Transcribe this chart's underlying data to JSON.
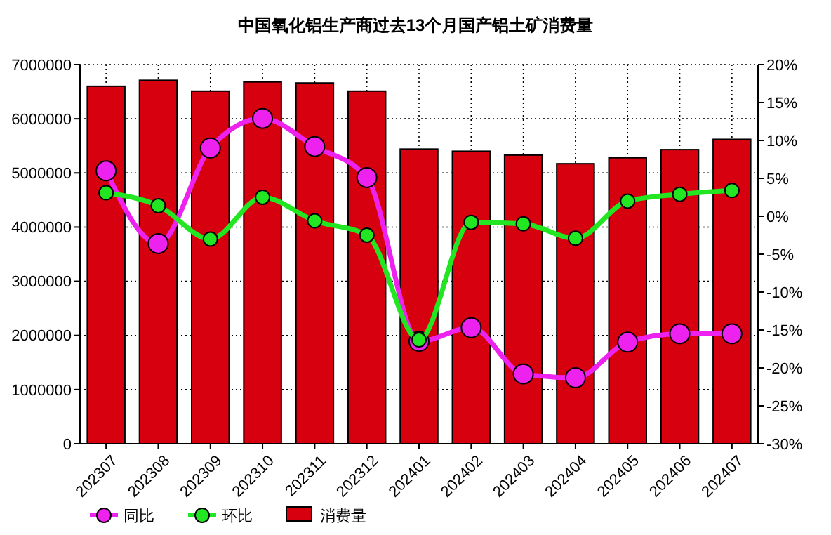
{
  "chart_data": {
    "type": "bar",
    "title": "中国氧化铝生产商过去13个月国产铝土矿消费量",
    "categories": [
      "202307",
      "202308",
      "202309",
      "202310",
      "202311",
      "202312",
      "202401",
      "202402",
      "202403",
      "202404",
      "202405",
      "202406",
      "202407"
    ],
    "series": [
      {
        "name": "同比",
        "type": "line",
        "axis": "y2",
        "color": "#ee22ee",
        "marker": "circle",
        "values": [
          6.0,
          -3.6,
          9.0,
          12.9,
          9.2,
          5.1,
          -16.5,
          -14.7,
          -20.8,
          -21.3,
          -16.6,
          -15.5,
          -15.5
        ]
      },
      {
        "name": "环比",
        "type": "line",
        "axis": "y2",
        "color": "#22e622",
        "marker": "circle",
        "values": [
          3.1,
          1.4,
          -3.0,
          2.5,
          -0.6,
          -2.5,
          -16.3,
          -0.8,
          -1.0,
          -2.9,
          2.0,
          2.9,
          3.4
        ]
      },
      {
        "name": "消费量",
        "color": "#d7000f",
        "values": [
          6600000,
          6710000,
          6510000,
          6680000,
          6660000,
          6510000,
          5440000,
          5400000,
          5330000,
          5170000,
          5280000,
          5430000,
          5620000
        ]
      }
    ],
    "ylim": [
      0,
      7000000
    ],
    "yticks": [
      0,
      1000000,
      2000000,
      3000000,
      4000000,
      5000000,
      6000000,
      7000000
    ],
    "y2lim": [
      -30,
      20
    ],
    "y2ticks": [
      {
        "value": -30,
        "label": "-30%"
      },
      {
        "value": -25,
        "label": "-25%"
      },
      {
        "value": -20,
        "label": "-20%"
      },
      {
        "value": -15,
        "label": "-15%"
      },
      {
        "value": -10,
        "label": "-10%"
      },
      {
        "value": -5,
        "label": "-5%"
      },
      {
        "value": 0,
        "label": "0%"
      },
      {
        "value": 5,
        "label": "5%"
      },
      {
        "value": 10,
        "label": "10%"
      },
      {
        "value": 15,
        "label": "15%"
      },
      {
        "value": 20,
        "label": "20%"
      }
    ],
    "grid": true,
    "legend": "bottom left"
  }
}
